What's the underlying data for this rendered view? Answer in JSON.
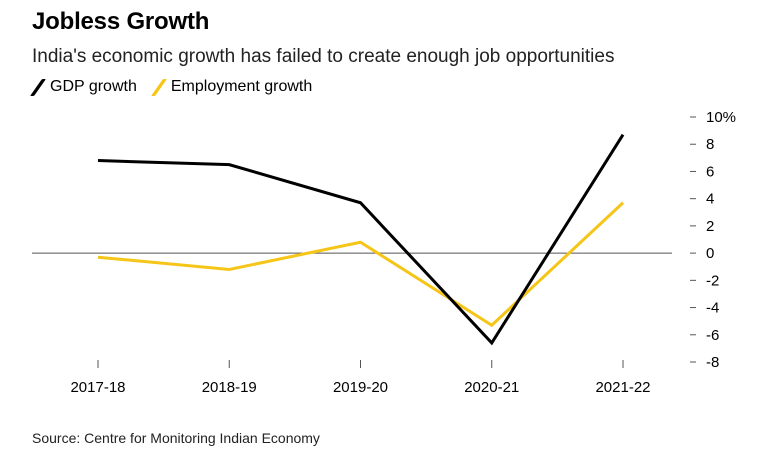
{
  "title": "Jobless Growth",
  "subtitle": "India's economic growth has failed to create enough job opportunities",
  "source": "Source: Centre for Monitoring Indian Economy",
  "colors": {
    "gdp": "#000000",
    "employment": "#f5c518",
    "zero_line": "#555555",
    "tick": "#555555"
  },
  "legend": [
    {
      "label": "GDP growth",
      "color": "#000000"
    },
    {
      "label": "Employment growth",
      "color": "#f5c518"
    }
  ],
  "chart_data": {
    "type": "line",
    "categories": [
      "2017-18",
      "2018-19",
      "2019-20",
      "2020-21",
      "2021-22"
    ],
    "series": [
      {
        "name": "GDP growth",
        "values": [
          6.8,
          6.5,
          3.7,
          -6.6,
          8.7
        ]
      },
      {
        "name": "Employment growth",
        "values": [
          -0.3,
          -1.2,
          0.8,
          -5.3,
          3.7
        ]
      }
    ],
    "y_ticks": [
      10,
      8,
      6,
      4,
      2,
      0,
      -2,
      -4,
      -6,
      -8
    ],
    "y_tick_labels": [
      "10%",
      "8",
      "6",
      "4",
      "2",
      "0",
      "-2",
      "-4",
      "-6",
      "-8"
    ],
    "ylim": [
      -8,
      10
    ],
    "y_axis_side": "right",
    "legend_position": "top-left",
    "grid": false
  }
}
